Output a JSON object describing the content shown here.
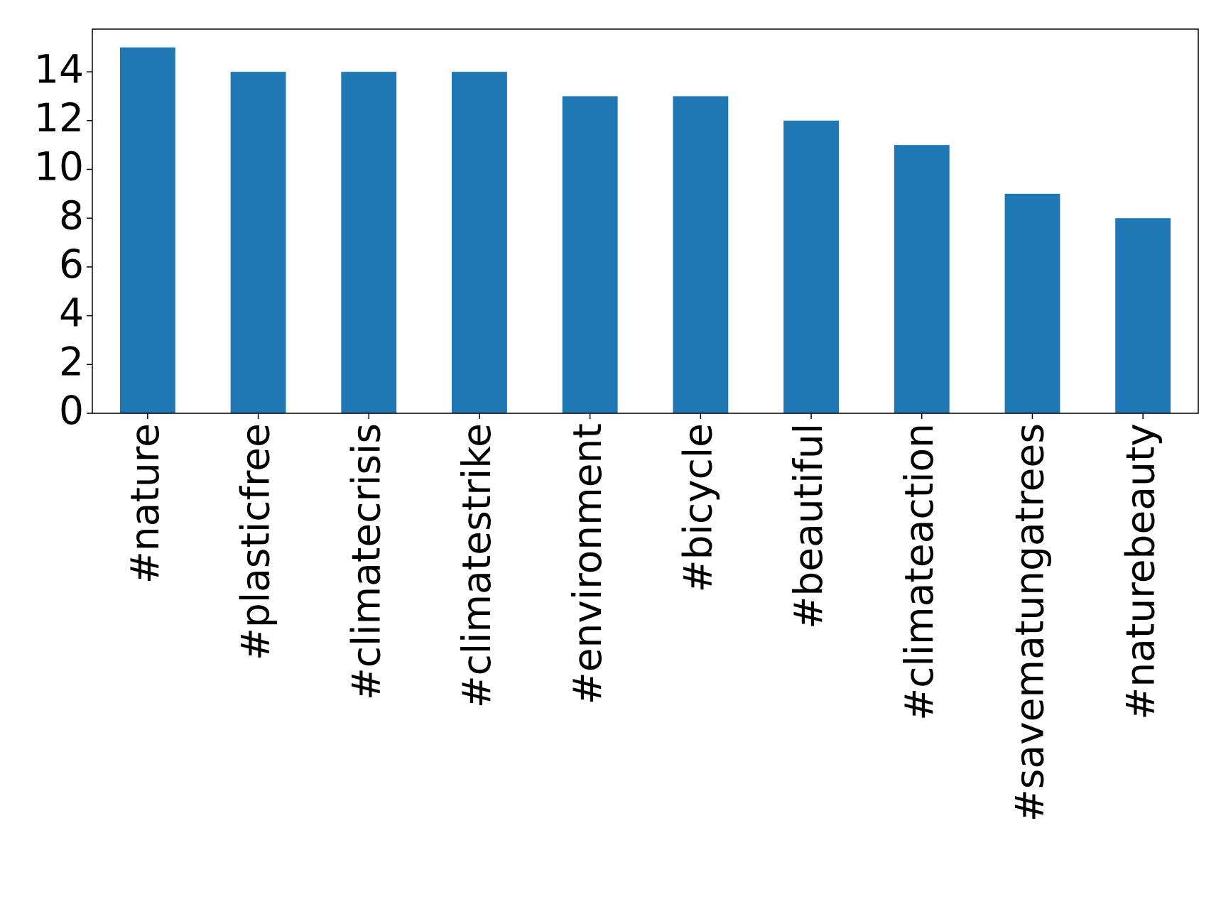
{
  "chart_data": {
    "type": "bar",
    "categories": [
      "#nature",
      "#plasticfree",
      "#climatecrisis",
      "#climatestrike",
      "#environment",
      "#bicycle",
      "#beautiful",
      "#climateaction",
      "#savematungatrees",
      "#naturebeauty"
    ],
    "values": [
      15,
      14,
      14,
      14,
      13,
      13,
      12,
      11,
      9,
      8
    ],
    "color": "#1f77b4",
    "ylim": [
      0,
      15.75
    ],
    "yticks": [
      0,
      2,
      4,
      6,
      8,
      10,
      12,
      14
    ],
    "grid": false
  }
}
